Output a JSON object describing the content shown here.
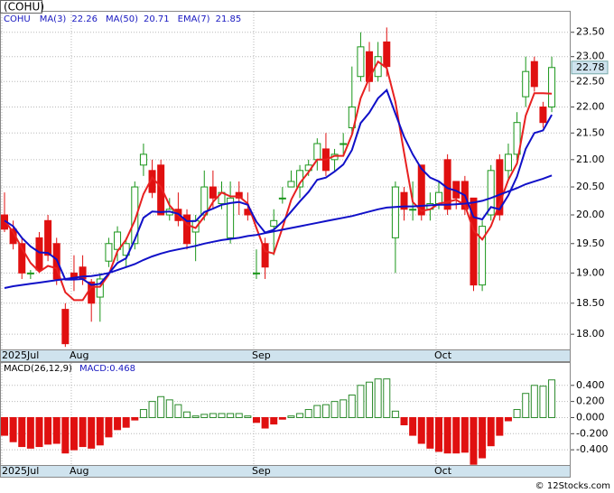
{
  "title": "(COHU)",
  "copyright": "© 12Stocks.com",
  "chart_data": [
    {
      "type": "candlestick",
      "symbol": "COHU",
      "categories": [
        "2025Jul",
        null,
        null,
        null,
        null,
        null,
        null,
        null,
        "Aug",
        null,
        null,
        null,
        null,
        null,
        null,
        null,
        null,
        null,
        null,
        null,
        null,
        null,
        null,
        null,
        null,
        null,
        null,
        null,
        null,
        "Sep",
        null,
        null,
        null,
        null,
        null,
        null,
        null,
        null,
        null,
        null,
        null,
        null,
        null,
        null,
        null,
        null,
        null,
        null,
        null,
        null,
        "Oct",
        null,
        null,
        null,
        null,
        null,
        null,
        null,
        null,
        null,
        null,
        null,
        null,
        null
      ],
      "open": [
        20.0,
        19.75,
        19.5,
        19.0,
        19.6,
        19.9,
        19.5,
        18.4,
        19.0,
        19.1,
        18.85,
        18.6,
        19.2,
        19.4,
        19.3,
        19.5,
        20.9,
        20.8,
        20.9,
        20.0,
        20.1,
        20.0,
        19.7,
        20.0,
        20.5,
        20.2,
        19.6,
        20.4,
        20.1,
        19.0,
        19.5,
        19.8,
        20.3,
        20.5,
        20.5,
        20.8,
        21.0,
        21.2,
        21.0,
        21.3,
        21.6,
        22.6,
        23.1,
        22.6,
        23.3,
        19.6,
        20.4,
        20.1,
        20.9,
        20.1,
        20.2,
        21.0,
        20.6,
        20.6,
        20.3,
        18.8,
        20.0,
        21.0,
        20.8,
        21.1,
        22.2,
        22.9,
        22.0,
        22.0
      ],
      "high": [
        20.4,
        19.9,
        19.6,
        19.05,
        19.7,
        20.0,
        19.6,
        18.5,
        19.3,
        19.3,
        18.9,
        19.0,
        19.6,
        19.8,
        19.6,
        20.6,
        21.3,
        21.0,
        21.0,
        20.3,
        20.4,
        20.1,
        20.0,
        20.8,
        20.8,
        20.6,
        20.6,
        20.6,
        20.4,
        19.4,
        19.6,
        20.1,
        20.5,
        20.8,
        20.9,
        21.0,
        21.4,
        21.5,
        21.2,
        21.5,
        22.8,
        23.5,
        23.3,
        23.3,
        23.6,
        20.6,
        20.5,
        20.6,
        20.9,
        20.4,
        20.6,
        21.1,
        20.6,
        20.7,
        20.3,
        19.9,
        20.9,
        21.1,
        21.3,
        21.9,
        23.0,
        23.0,
        22.1,
        23.0
      ],
      "low": [
        19.7,
        19.4,
        18.9,
        18.9,
        19.0,
        19.2,
        18.8,
        17.8,
        18.7,
        18.8,
        18.2,
        18.2,
        19.1,
        19.2,
        19.1,
        19.4,
        20.7,
        20.3,
        20.0,
        19.9,
        19.8,
        19.4,
        19.2,
        19.9,
        20.1,
        20.1,
        19.5,
        20.0,
        19.9,
        18.9,
        18.9,
        19.3,
        20.2,
        20.5,
        20.3,
        20.7,
        20.8,
        20.7,
        20.8,
        21.1,
        21.5,
        22.5,
        22.3,
        22.5,
        22.6,
        19.0,
        19.9,
        19.9,
        19.9,
        19.9,
        20.1,
        20.0,
        20.1,
        20.0,
        18.7,
        18.7,
        19.9,
        19.9,
        20.6,
        21.0,
        22.0,
        22.3,
        21.6,
        21.9
      ],
      "close": [
        19.75,
        19.5,
        19.0,
        19.0,
        19.05,
        19.3,
        18.9,
        17.85,
        18.9,
        18.9,
        18.5,
        18.9,
        19.5,
        19.7,
        19.5,
        20.5,
        21.1,
        20.4,
        20.0,
        20.1,
        19.9,
        19.5,
        19.9,
        20.5,
        20.3,
        20.4,
        20.3,
        20.3,
        20.0,
        19.0,
        19.1,
        19.9,
        20.3,
        20.6,
        20.8,
        20.9,
        21.3,
        20.8,
        21.1,
        21.3,
        22.0,
        23.2,
        22.5,
        23.0,
        22.8,
        20.5,
        20.1,
        20.1,
        20.0,
        20.2,
        20.4,
        20.1,
        20.3,
        20.1,
        18.8,
        19.8,
        20.8,
        20.0,
        21.1,
        21.7,
        22.7,
        22.4,
        21.7,
        22.78
      ],
      "up_color": "#1a961a",
      "down_color": "#e01010",
      "series": [
        {
          "name": "MA(3)",
          "legend_value": "22.26",
          "color": "#e82020",
          "values": [
            19.9,
            19.7,
            19.42,
            19.17,
            19.02,
            19.12,
            19.08,
            18.68,
            18.55,
            18.55,
            18.77,
            18.77,
            18.97,
            19.37,
            19.57,
            19.9,
            20.37,
            20.67,
            20.5,
            20.17,
            20.0,
            19.83,
            19.77,
            19.97,
            20.23,
            20.4,
            20.33,
            20.33,
            20.2,
            19.77,
            19.37,
            19.33,
            19.77,
            20.27,
            20.57,
            20.77,
            21.0,
            21.0,
            21.07,
            21.07,
            21.47,
            22.17,
            22.57,
            22.9,
            22.77,
            22.1,
            21.13,
            20.23,
            20.07,
            20.1,
            20.2,
            20.23,
            20.27,
            20.17,
            19.73,
            19.57,
            19.8,
            20.2,
            20.63,
            20.93,
            21.83,
            22.27,
            22.27,
            22.26
          ]
        },
        {
          "name": "MA(50)",
          "legend_value": "20.71",
          "color": "#1010c8",
          "values": [
            18.75,
            18.78,
            18.8,
            18.82,
            18.84,
            18.86,
            18.88,
            18.9,
            18.92,
            18.94,
            18.95,
            18.97,
            19.0,
            19.05,
            19.1,
            19.15,
            19.22,
            19.28,
            19.33,
            19.37,
            19.4,
            19.43,
            19.46,
            19.5,
            19.53,
            19.56,
            19.58,
            19.6,
            19.63,
            19.65,
            19.68,
            19.71,
            19.74,
            19.77,
            19.8,
            19.83,
            19.86,
            19.89,
            19.92,
            19.95,
            19.98,
            20.02,
            20.06,
            20.1,
            20.13,
            20.14,
            20.15,
            20.15,
            20.16,
            20.17,
            20.18,
            20.18,
            20.19,
            20.2,
            20.22,
            20.25,
            20.3,
            20.36,
            20.42,
            20.48,
            20.55,
            20.6,
            20.65,
            20.71
          ]
        },
        {
          "name": "EMA(7)",
          "legend_value": "21.85",
          "color": "#1010c8",
          "values": [
            19.9,
            19.8,
            19.6,
            19.45,
            19.35,
            19.34,
            19.23,
            18.89,
            18.89,
            18.9,
            18.8,
            18.82,
            18.99,
            19.17,
            19.25,
            19.57,
            19.95,
            20.06,
            20.05,
            20.06,
            20.02,
            19.89,
            19.89,
            20.05,
            20.11,
            20.18,
            20.21,
            20.23,
            20.18,
            19.88,
            19.69,
            19.74,
            19.88,
            20.06,
            20.24,
            20.41,
            20.63,
            20.67,
            20.78,
            20.91,
            21.18,
            21.69,
            21.89,
            22.17,
            22.33,
            21.87,
            21.43,
            21.1,
            20.83,
            20.67,
            20.6,
            20.48,
            20.43,
            20.35,
            19.96,
            19.92,
            20.14,
            20.1,
            20.35,
            20.69,
            21.2,
            21.5,
            21.55,
            21.85
          ]
        }
      ],
      "ylim": [
        17.76,
        23.93
      ],
      "log_scale": true,
      "grid": true,
      "last_label": "22.78",
      "yticks": [
        {
          "value": 18,
          "label": "18.00"
        },
        {
          "value": 18.5,
          "label": "18.50"
        },
        {
          "value": 19,
          "label": "19.00"
        },
        {
          "value": 19.5,
          "label": "19.50"
        },
        {
          "value": 20,
          "label": "20.00"
        },
        {
          "value": 20.5,
          "label": "20.50"
        },
        {
          "value": 21,
          "label": "21.00"
        },
        {
          "value": 21.5,
          "label": "21.50"
        },
        {
          "value": 22,
          "label": "22.00"
        },
        {
          "value": 22.5,
          "label": "22.50"
        },
        {
          "value": 23,
          "label": "23.00"
        },
        {
          "value": 23.5,
          "label": "23.50"
        }
      ]
    },
    {
      "type": "bar",
      "title": "MACD(26,12,9)",
      "subtitle": "MACD:0.468",
      "categories": [
        "2025Jul",
        null,
        null,
        null,
        null,
        null,
        null,
        null,
        "Aug",
        null,
        null,
        null,
        null,
        null,
        null,
        null,
        null,
        null,
        null,
        null,
        null,
        null,
        null,
        null,
        null,
        null,
        null,
        null,
        null,
        "Sep",
        null,
        null,
        null,
        null,
        null,
        null,
        null,
        null,
        null,
        null,
        null,
        null,
        null,
        null,
        null,
        null,
        null,
        null,
        null,
        null,
        "Oct",
        null,
        null,
        null,
        null,
        null,
        null,
        null,
        null,
        null,
        null,
        null,
        null,
        null
      ],
      "values": [
        -0.22,
        -0.3,
        -0.36,
        -0.38,
        -0.36,
        -0.33,
        -0.32,
        -0.44,
        -0.4,
        -0.36,
        -0.38,
        -0.34,
        -0.24,
        -0.15,
        -0.12,
        -0.03,
        0.1,
        0.2,
        0.26,
        0.22,
        0.16,
        0.07,
        0.02,
        0.04,
        0.05,
        0.05,
        0.05,
        0.05,
        0.02,
        -0.06,
        -0.13,
        -0.08,
        -0.02,
        0.02,
        0.05,
        0.1,
        0.15,
        0.16,
        0.2,
        0.22,
        0.28,
        0.4,
        0.44,
        0.48,
        0.48,
        0.08,
        -0.09,
        -0.22,
        -0.32,
        -0.38,
        -0.42,
        -0.44,
        -0.44,
        -0.43,
        -0.58,
        -0.5,
        -0.35,
        -0.22,
        -0.04,
        0.1,
        0.3,
        0.4,
        0.39,
        0.468
      ],
      "up_color": "#2a8a2a",
      "down_color": "#e01010",
      "ylim": [
        -0.589,
        0.678
      ],
      "grid": true,
      "yticks": [
        {
          "value": -0.4,
          "label": "-0.400"
        },
        {
          "value": -0.2,
          "label": "-0.200"
        },
        {
          "value": 0,
          "label": "0.000"
        },
        {
          "value": 0.2,
          "label": "0.200"
        },
        {
          "value": 0.4,
          "label": "0.400"
        }
      ]
    }
  ]
}
